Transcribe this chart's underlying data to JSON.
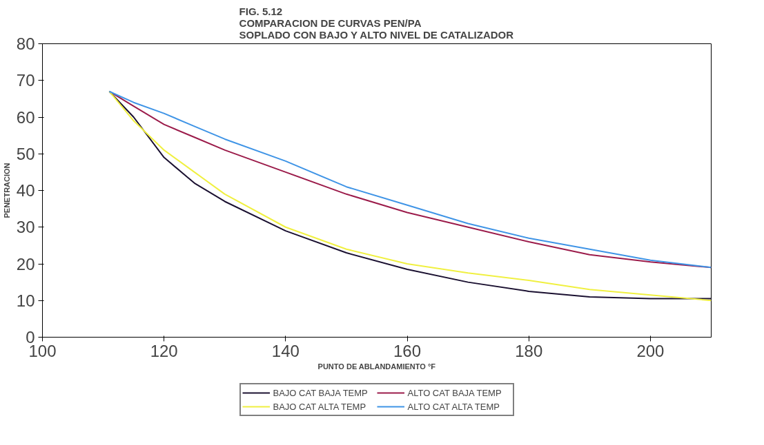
{
  "chart_data": {
    "type": "line",
    "title": "FIG. 5.12\nCOMPARACION DE CURVAS PEN/PA\nSOPLADO CON BAJO Y ALTO NIVEL DE CATALIZADOR",
    "xlabel": "PUNTO DE ABLANDAMIENTO °F",
    "ylabel": "PENETRACION",
    "x": [
      111,
      115,
      120,
      125,
      130,
      140,
      150,
      160,
      170,
      180,
      190,
      200,
      210
    ],
    "series": [
      {
        "name": "BAJO CAT BAJA TEMP",
        "color": "#1a1030",
        "values": [
          67,
          60,
          49,
          42,
          37,
          29,
          23,
          18.5,
          15,
          12.5,
          11,
          10.5,
          10.5
        ]
      },
      {
        "name": "ALTO CAT BAJA TEMP",
        "color": "#9b1b4a",
        "values": [
          67,
          63,
          58,
          54.5,
          51,
          45,
          39,
          34,
          30,
          26,
          22.5,
          20.5,
          19
        ]
      },
      {
        "name": "BAJO CAT ALTA TEMP",
        "color": "#f0f040",
        "values": [
          67,
          59,
          51,
          45,
          39,
          30,
          24,
          20,
          17.5,
          15.5,
          13,
          11.5,
          10
        ]
      },
      {
        "name": "ALTO CAT ALTA TEMP",
        "color": "#3f94e6",
        "values": [
          67,
          64,
          61,
          57.5,
          54,
          48,
          41,
          36,
          31,
          27,
          24,
          21,
          19
        ]
      }
    ],
    "xlim": [
      100,
      210
    ],
    "xticks": [
      100,
      120,
      140,
      160,
      180,
      200
    ],
    "ylim": [
      0,
      80
    ],
    "yticks": [
      0,
      10,
      20,
      30,
      40,
      50,
      60,
      70,
      80
    ],
    "grid": false,
    "legend": "bottom",
    "marker": "none",
    "line_style": "solid"
  }
}
